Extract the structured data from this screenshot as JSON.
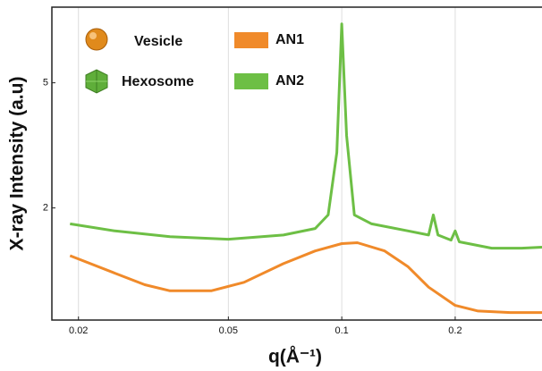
{
  "chart_data": {
    "type": "line",
    "xlabel": "q(Å⁻¹)",
    "ylabel": "X-ray Intensity (a.u)",
    "xscale": "log",
    "yscale": "log",
    "grid": true,
    "xlim": [
      0.017,
      0.34
    ],
    "ylim": [
      0.88,
      8.7
    ],
    "xticks": [
      0.02,
      0.05,
      0.1,
      0.2
    ],
    "yticks": [
      2,
      5
    ],
    "annotations": [
      "Vesicle",
      "Hexosome"
    ],
    "series": [
      {
        "name": "AN1",
        "color": "#f08a2a",
        "x": [
          0.019,
          0.025,
          0.03,
          0.035,
          0.045,
          0.055,
          0.07,
          0.085,
          0.1,
          0.11,
          0.13,
          0.15,
          0.17,
          0.2,
          0.23,
          0.28,
          0.34
        ],
        "values": [
          1.41,
          1.24,
          1.14,
          1.09,
          1.09,
          1.16,
          1.33,
          1.46,
          1.54,
          1.55,
          1.46,
          1.3,
          1.12,
          0.98,
          0.94,
          0.93,
          0.93
        ]
      },
      {
        "name": "AN2",
        "color": "#6dbf45",
        "x": [
          0.019,
          0.025,
          0.035,
          0.05,
          0.07,
          0.085,
          0.092,
          0.097,
          0.1,
          0.103,
          0.108,
          0.12,
          0.15,
          0.17,
          0.175,
          0.18,
          0.195,
          0.2,
          0.205,
          0.25,
          0.3,
          0.34
        ],
        "values": [
          1.78,
          1.69,
          1.62,
          1.59,
          1.64,
          1.72,
          1.9,
          3.0,
          7.7,
          3.4,
          1.9,
          1.78,
          1.69,
          1.64,
          1.9,
          1.64,
          1.58,
          1.69,
          1.56,
          1.49,
          1.49,
          1.5
        ]
      }
    ]
  }
}
